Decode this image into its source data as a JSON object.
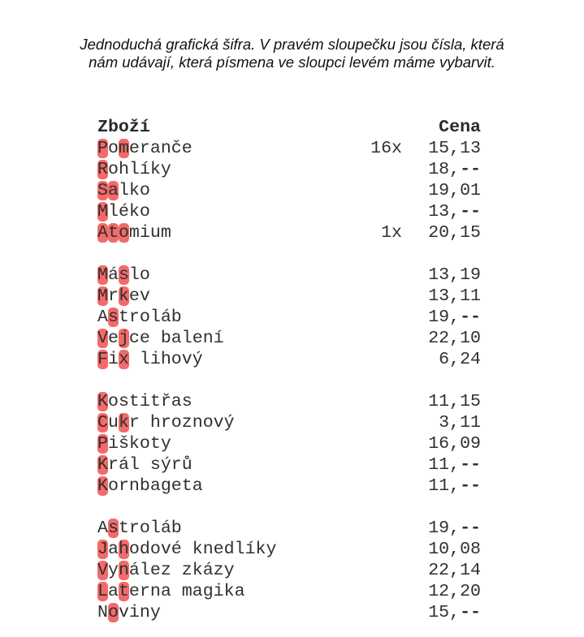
{
  "intro": {
    "line1": "Jednoduchá grafická šifra. V pravém sloupečku jsou čísla, která",
    "line2": "nám udávají, která písmena ve sloupci levém máme vybarvit."
  },
  "header": {
    "item_label": "Zboží",
    "price_label": "Cena"
  },
  "highlight_color": "#f46a6a",
  "groups": [
    {
      "items": [
        {
          "name": "Pomeranče",
          "qty": "16x",
          "price": "15,13",
          "highlight": [
            0,
            2
          ]
        },
        {
          "name": "Rohlíky",
          "qty": "",
          "price": "18,--",
          "highlight": [
            0
          ]
        },
        {
          "name": "Salko",
          "qty": "",
          "price": "19,01",
          "highlight": [
            0,
            1
          ]
        },
        {
          "name": "Mléko",
          "qty": "",
          "price": "13,--",
          "highlight": [
            0
          ]
        },
        {
          "name": "Atomium",
          "qty": "1x",
          "price": "20,15",
          "highlight": [
            0,
            1,
            2
          ]
        }
      ]
    },
    {
      "items": [
        {
          "name": "Máslo",
          "qty": "",
          "price": "13,19",
          "highlight": [
            0,
            2
          ]
        },
        {
          "name": "Mrkev",
          "qty": "",
          "price": "13,11",
          "highlight": [
            0,
            2
          ]
        },
        {
          "name": "Astroláb",
          "qty": "",
          "price": "19,--",
          "highlight": [
            1
          ]
        },
        {
          "name": "Vejce balení",
          "qty": "",
          "price": "22,10",
          "highlight": [
            0,
            2
          ]
        },
        {
          "name": "Fix lihový",
          "qty": "",
          "price": "6,24",
          "highlight": [
            0,
            2
          ]
        }
      ]
    },
    {
      "items": [
        {
          "name": "Kostitřas",
          "qty": "",
          "price": "11,15",
          "highlight": [
            0
          ]
        },
        {
          "name": "Cukr hroznový",
          "qty": "",
          "price": "3,11",
          "highlight": [
            0,
            2
          ]
        },
        {
          "name": "Piškoty",
          "qty": "",
          "price": "16,09",
          "highlight": [
            0
          ]
        },
        {
          "name": "Král sýrů",
          "qty": "",
          "price": "11,--",
          "highlight": [
            0
          ]
        },
        {
          "name": "Kornbageta",
          "qty": "",
          "price": "11,--",
          "highlight": [
            0
          ]
        }
      ]
    },
    {
      "items": [
        {
          "name": "Astroláb",
          "qty": "",
          "price": "19,--",
          "highlight": [
            1
          ]
        },
        {
          "name": "Jahodové knedlíky",
          "qty": "",
          "price": "10,08",
          "highlight": [
            0,
            2
          ]
        },
        {
          "name": "Vynález zkázy",
          "qty": "",
          "price": "22,14",
          "highlight": [
            0,
            2
          ]
        },
        {
          "name": "Laterna magika",
          "qty": "",
          "price": "12,20",
          "highlight": [
            0,
            2
          ]
        },
        {
          "name": "Noviny",
          "qty": "",
          "price": "15,--",
          "highlight": [
            1
          ]
        }
      ]
    }
  ]
}
